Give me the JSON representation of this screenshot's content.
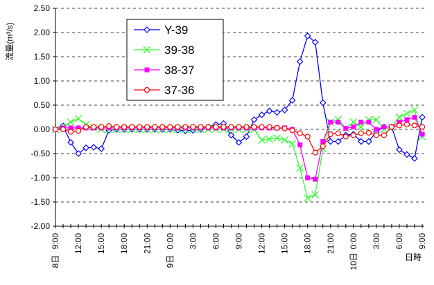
{
  "chart_data": {
    "type": "line",
    "y_label": "流量(m³/s)",
    "x_label": "日時",
    "categories": [
      "9:00",
      null,
      null,
      "12:00",
      null,
      null,
      "15:00",
      null,
      null,
      "18:00",
      null,
      null,
      "21:00",
      null,
      null,
      "0:00",
      null,
      null,
      "3:00",
      null,
      null,
      "6:00",
      null,
      null,
      "9:00",
      null,
      null,
      "12:00",
      null,
      null,
      "15:00",
      null,
      null,
      "18:00",
      null,
      null,
      "21:00",
      null,
      null,
      "0:00",
      null,
      null,
      "3:00",
      null,
      null,
      "6:00",
      null,
      null,
      "9:00"
    ],
    "date_labels": [
      "8日",
      null,
      null,
      null,
      null,
      null,
      null,
      null,
      null,
      null,
      null,
      null,
      null,
      null,
      null,
      "9日",
      null,
      null,
      null,
      null,
      null,
      null,
      null,
      null,
      null,
      null,
      null,
      null,
      null,
      null,
      null,
      null,
      null,
      null,
      null,
      null,
      null,
      null,
      null,
      "10日",
      null,
      null,
      null,
      null,
      null,
      null,
      null,
      null,
      null
    ],
    "ylim": [
      -2,
      2.5
    ],
    "yticks": [
      {
        "value": -2,
        "label": "-2.00"
      },
      {
        "value": -1.5,
        "label": "-1.50"
      },
      {
        "value": -1,
        "label": "-1.00"
      },
      {
        "value": -0.5,
        "label": "-0.50"
      },
      {
        "value": 0,
        "label": "0.00"
      },
      {
        "value": 0.5,
        "label": "0.50"
      },
      {
        "value": 1,
        "label": "1.00"
      },
      {
        "value": 1.5,
        "label": "1.50"
      },
      {
        "value": 2,
        "label": "2.00"
      },
      {
        "value": 2.5,
        "label": "2.50"
      }
    ],
    "grid": true,
    "legend": "upper left",
    "series": [
      {
        "name": "Y-39",
        "color": "#0000ff",
        "marker": "diamond",
        "values": [
          0,
          0.07,
          -0.27,
          -0.5,
          -0.38,
          -0.37,
          -0.4,
          -0.02,
          0,
          0,
          0,
          0,
          0,
          0,
          0,
          0,
          -0.02,
          -0.03,
          -0.02,
          0,
          0.05,
          0.1,
          0.12,
          -0.12,
          -0.27,
          -0.15,
          0.2,
          0.3,
          0.38,
          0.35,
          0.4,
          0.6,
          1.4,
          1.93,
          1.8,
          0.55,
          -0.25,
          -0.25,
          -0.12,
          -0.1,
          -0.25,
          -0.25,
          -0.05,
          0.05,
          0.05,
          -0.42,
          -0.52,
          -0.6,
          0.25
        ]
      },
      {
        "name": "39-38",
        "color": "#33ff33",
        "marker": "x",
        "values": [
          0,
          0.05,
          0.15,
          0.22,
          0.1,
          0.03,
          0,
          0,
          0,
          0,
          0,
          0,
          0,
          0,
          0,
          0,
          0,
          0,
          0,
          0,
          0,
          0,
          0,
          0,
          0,
          0,
          0,
          -0.22,
          -0.2,
          -0.18,
          -0.22,
          -0.3,
          -0.8,
          -1.42,
          -1.35,
          -0.4,
          0.15,
          0.2,
          0.02,
          0.15,
          0.05,
          0.2,
          0.2,
          0,
          0.05,
          0.25,
          0.33,
          0.4,
          -0.15
        ]
      },
      {
        "name": "38-37",
        "color": "#ff00ff",
        "marker": "square",
        "values": [
          0,
          0.03,
          0.03,
          0.03,
          0.03,
          0.03,
          0.03,
          0.03,
          0.03,
          0.03,
          0.03,
          0.03,
          0.03,
          0.03,
          0.03,
          0.03,
          0.03,
          0.03,
          0.03,
          0.03,
          0.03,
          0.03,
          0.03,
          0.03,
          0.03,
          0.03,
          0.03,
          0.03,
          0.03,
          0.03,
          0.03,
          0,
          -0.32,
          -1,
          -1.03,
          -0.25,
          0.15,
          0.15,
          0.02,
          0.05,
          0.15,
          0.15,
          0,
          0.05,
          0.05,
          0.15,
          0.2,
          0.25,
          -0.1
        ]
      },
      {
        "name": "37-36",
        "color": "#ff0000",
        "marker": "circle",
        "values": [
          0,
          0,
          -0.05,
          -0.03,
          0.05,
          0.05,
          0.05,
          0.07,
          0.05,
          0.05,
          0.05,
          0.05,
          0.05,
          0.05,
          0.05,
          0.05,
          0.05,
          0.05,
          0.05,
          0.05,
          0.05,
          0.05,
          0.05,
          0.05,
          0.05,
          0.05,
          0.05,
          0.05,
          0.05,
          0.03,
          0.02,
          -0.02,
          -0.08,
          -0.15,
          -0.48,
          -0.35,
          -0.1,
          -0.08,
          -0.15,
          -0.12,
          -0.08,
          -0.07,
          -0.12,
          -0.12,
          0.05,
          0.08,
          0.1,
          0.08,
          0.05
        ]
      }
    ]
  }
}
